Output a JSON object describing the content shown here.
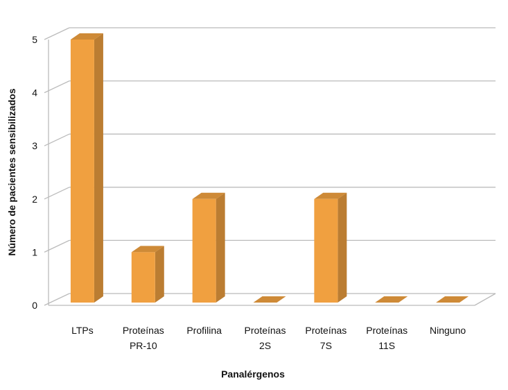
{
  "chart_data": {
    "type": "bar3d",
    "categories": [
      "LTPs",
      "Proteínas\nPR-10",
      "Profilina",
      "Proteínas\n2S",
      "Proteínas\n7S",
      "Proteínas\n11S",
      "Ninguno"
    ],
    "values": [
      5,
      1,
      2,
      0,
      2,
      0,
      0
    ],
    "color": "#f0a040",
    "ylim": [
      0,
      5
    ],
    "yticks": [
      0,
      1,
      2,
      3,
      4,
      5
    ],
    "grid": true,
    "y_label": "Número de pacientes sensibilizados",
    "x_label": "Panalérgenos"
  }
}
